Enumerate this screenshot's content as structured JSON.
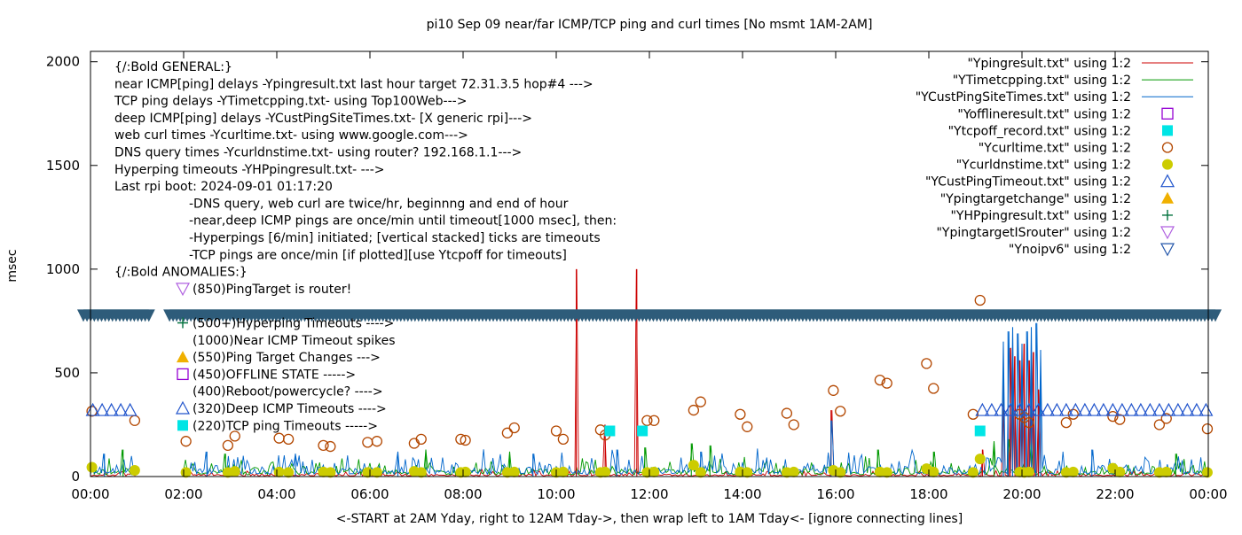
{
  "chart_data": {
    "type": "line",
    "title": "pi10 Sep 09  near/far ICMP/TCP ping and curl times [No msmt 1AM-2AM]",
    "xlabel": "<-START at 2AM Yday, right to 12AM Tday->, then wrap left to 1AM Tday<- [ignore connecting lines]",
    "ylabel": "msec",
    "xlim": [
      0,
      24
    ],
    "ylim": [
      0,
      2050
    ],
    "x_ticks": [
      "00:00",
      "02:00",
      "04:00",
      "06:00",
      "08:00",
      "10:00",
      "12:00",
      "14:00",
      "16:00",
      "18:00",
      "20:00",
      "22:00",
      "00:00"
    ],
    "y_ticks": [
      "0",
      "500",
      "1000",
      "1500",
      "2000"
    ],
    "grid": false,
    "legend_position": "top-right",
    "legend": [
      {
        "label": "\"Ypingresult.txt\" using 1:2",
        "symbol": "line",
        "color": "#cc0000"
      },
      {
        "label": "\"YTimetcpping.txt\" using 1:2",
        "symbol": "line",
        "color": "#009900"
      },
      {
        "label": "\"YCustPingSiteTimes.txt\" using 1:2",
        "symbol": "line",
        "color": "#0066cc"
      },
      {
        "label": "\"Yofflineresult.txt\" using 1:2",
        "symbol": "square-open",
        "color": "#9400d3"
      },
      {
        "label": "\"Ytcpoff_record.txt\" using 1:2",
        "symbol": "square-filled",
        "color": "#00e5e5"
      },
      {
        "label": "\"Ycurltime.txt\" using 1:2",
        "symbol": "circle-open",
        "color": "#b34700"
      },
      {
        "label": "\"Ycurldnstime.txt\" using 1:2",
        "symbol": "circle-filled",
        "color": "#cccc00"
      },
      {
        "label": "\"YCustPingTimeout.txt\" using 1:2",
        "symbol": "triangle-up-open",
        "color": "#2255cc"
      },
      {
        "label": "\"Ypingtargetchange\" using 1:2",
        "symbol": "triangle-up-filled",
        "color": "#f0b000"
      },
      {
        "label": "\"YHPpingresult.txt\" using 1:2",
        "symbol": "plus",
        "color": "#00703c"
      },
      {
        "label": "\"YpingtargetISrouter\" using 1:2",
        "symbol": "triangle-down-open",
        "color": "#b060e0"
      },
      {
        "label": "\"Ynoipv6\" using 1:2",
        "symbol": "triangle-down-open",
        "color": "#2255aa"
      }
    ],
    "info_lines": [
      "{/:Bold GENERAL:}",
      "near ICMP[ping] delays -Ypingresult.txt last hour target 72.31.3.5 hop#4 --->",
      "TCP ping delays -YTimetcpping.txt- using Top100Web--->",
      "deep ICMP[ping] delays -YCustPingSiteTimes.txt- [X generic rpi]--->",
      "web curl times -Ycurltime.txt- using www.google.com--->",
      "DNS query times -Ycurldnstime.txt- using router? 192.168.1.1--->",
      "Hyperping timeouts -YHPpingresult.txt- --->",
      "Last rpi boot: 2024-09-01 01:17:20"
    ],
    "note_lines": [
      "-DNS query, web curl are twice/hr, beginnng and end of hour",
      "-near,deep ICMP pings are once/min until timeout[1000 msec], then:",
      "  -Hyperpings [6/min] initiated; [vertical stacked] ticks are timeouts",
      "-TCP pings are once/min [if plotted][use Ytcpoff for timeouts]"
    ],
    "anomalies_title": "{/:Bold ANOMALIES:}",
    "anomalies": [
      {
        "text": "(850)PingTarget is router!",
        "symbol": "triangle-down-open",
        "color": "#b060e0"
      },
      {
        "text": "(500+)Hyperping Timeouts ---->",
        "symbol": "plus",
        "color": "#00703c"
      },
      {
        "text": "(1000)Near ICMP Timeout spikes",
        "symbol": "none",
        "color": "#000000"
      },
      {
        "text": "(550)Ping Target Changes --->",
        "symbol": "triangle-up-filled",
        "color": "#f0b000"
      },
      {
        "text": "(450)OFFLINE STATE ----->",
        "symbol": "square-open",
        "color": "#9400d3"
      },
      {
        "text": "(400)Reboot/powercycle? ---->",
        "symbol": "none",
        "color": "#000000"
      },
      {
        "text": "(320)Deep ICMP Timeouts ---->",
        "symbol": "triangle-up-open",
        "color": "#2255cc"
      },
      {
        "text": "(220)TCP ping Timeouts ----->",
        "symbol": "square-filled",
        "color": "#00e5e5"
      }
    ],
    "series": [
      {
        "name": "Ynoipv6",
        "color": "#2e5c7a",
        "marker": "triangle-down-open",
        "y_level": 780,
        "segments": [
          [
            0.0,
            1.1
          ],
          [
            1.85,
            24.0
          ]
        ]
      },
      {
        "name": "Ypingresult.txt",
        "color": "#cc0000",
        "base": 12,
        "spikes": [
          [
            10.43,
            1000
          ],
          [
            11.05,
            250
          ],
          [
            11.73,
            1000
          ],
          [
            15.9,
            320
          ],
          [
            19.15,
            130
          ],
          [
            19.6,
            440
          ],
          [
            19.75,
            620
          ],
          [
            19.85,
            580
          ],
          [
            19.95,
            560
          ],
          [
            20.05,
            640
          ],
          [
            20.15,
            560
          ],
          [
            20.25,
            600
          ],
          [
            20.35,
            420
          ]
        ]
      },
      {
        "name": "YTimetcpping.txt",
        "color": "#009900",
        "base": 35,
        "spikes": [
          [
            0.7,
            130
          ],
          [
            2.9,
            110
          ],
          [
            7.2,
            130
          ],
          [
            9.0,
            120
          ],
          [
            11.9,
            140
          ],
          [
            12.9,
            160
          ],
          [
            13.3,
            150
          ],
          [
            16.9,
            130
          ],
          [
            18.1,
            120
          ],
          [
            19.4,
            170
          ],
          [
            19.7,
            180
          ],
          [
            20.2,
            170
          ],
          [
            23.3,
            110
          ]
        ]
      },
      {
        "name": "YCustPingSiteTimes.txt",
        "color": "#0066cc",
        "base": 45,
        "spikes": [
          [
            0.3,
            110
          ],
          [
            2.5,
            120
          ],
          [
            4.4,
            110
          ],
          [
            6.6,
            120
          ],
          [
            9.5,
            110
          ],
          [
            11.3,
            130
          ],
          [
            13.1,
            120
          ],
          [
            15.9,
            270
          ],
          [
            19.6,
            650
          ],
          [
            19.7,
            700
          ],
          [
            19.8,
            720
          ],
          [
            19.9,
            690
          ],
          [
            20.0,
            640
          ],
          [
            20.1,
            700
          ],
          [
            20.2,
            720
          ],
          [
            20.3,
            740
          ],
          [
            20.4,
            610
          ],
          [
            21.5,
            130
          ]
        ]
      },
      {
        "name": "Ycurltime.txt",
        "color": "#b34700",
        "points": [
          [
            0.03,
            315
          ],
          [
            0.95,
            270
          ],
          [
            2.05,
            170
          ],
          [
            2.95,
            150
          ],
          [
            3.1,
            195
          ],
          [
            4.05,
            185
          ],
          [
            4.25,
            180
          ],
          [
            5.0,
            150
          ],
          [
            5.15,
            145
          ],
          [
            5.95,
            165
          ],
          [
            6.15,
            170
          ],
          [
            6.95,
            160
          ],
          [
            7.1,
            180
          ],
          [
            7.95,
            180
          ],
          [
            8.05,
            175
          ],
          [
            8.95,
            210
          ],
          [
            9.1,
            235
          ],
          [
            10.0,
            220
          ],
          [
            10.15,
            180
          ],
          [
            10.95,
            225
          ],
          [
            11.05,
            200
          ],
          [
            11.95,
            270
          ],
          [
            12.1,
            270
          ],
          [
            12.95,
            320
          ],
          [
            13.1,
            360
          ],
          [
            13.95,
            300
          ],
          [
            14.1,
            240
          ],
          [
            14.95,
            305
          ],
          [
            15.1,
            250
          ],
          [
            15.95,
            415
          ],
          [
            16.1,
            315
          ],
          [
            16.95,
            465
          ],
          [
            17.1,
            450
          ],
          [
            17.95,
            545
          ],
          [
            18.1,
            425
          ],
          [
            18.95,
            300
          ],
          [
            19.1,
            850
          ],
          [
            19.95,
            300
          ],
          [
            20.05,
            285
          ],
          [
            20.15,
            260
          ],
          [
            20.95,
            260
          ],
          [
            21.1,
            300
          ],
          [
            21.95,
            290
          ],
          [
            22.1,
            275
          ],
          [
            22.95,
            250
          ],
          [
            23.1,
            280
          ],
          [
            23.98,
            230
          ]
        ]
      },
      {
        "name": "Ycurldnstime.txt",
        "color": "#cccc00",
        "points": [
          [
            0.03,
            45
          ],
          [
            0.95,
            30
          ],
          [
            2.05,
            20
          ],
          [
            2.95,
            20
          ],
          [
            3.1,
            25
          ],
          [
            4.05,
            22
          ],
          [
            4.25,
            20
          ],
          [
            5.0,
            22
          ],
          [
            5.15,
            20
          ],
          [
            5.95,
            20
          ],
          [
            6.15,
            20
          ],
          [
            6.95,
            25
          ],
          [
            7.1,
            20
          ],
          [
            7.95,
            20
          ],
          [
            8.05,
            22
          ],
          [
            8.95,
            20
          ],
          [
            9.1,
            22
          ],
          [
            10.0,
            20
          ],
          [
            10.15,
            22
          ],
          [
            10.95,
            20
          ],
          [
            11.05,
            22
          ],
          [
            11.95,
            20
          ],
          [
            12.1,
            22
          ],
          [
            12.95,
            55
          ],
          [
            13.1,
            20
          ],
          [
            13.95,
            22
          ],
          [
            14.1,
            20
          ],
          [
            14.95,
            20
          ],
          [
            15.1,
            22
          ],
          [
            15.95,
            30
          ],
          [
            16.1,
            20
          ],
          [
            16.95,
            22
          ],
          [
            17.1,
            20
          ],
          [
            17.95,
            38
          ],
          [
            18.1,
            22
          ],
          [
            18.95,
            20
          ],
          [
            19.1,
            85
          ],
          [
            19.95,
            22
          ],
          [
            20.05,
            20
          ],
          [
            20.15,
            22
          ],
          [
            20.95,
            20
          ],
          [
            21.1,
            22
          ],
          [
            21.95,
            40
          ],
          [
            22.1,
            22
          ],
          [
            22.95,
            20
          ],
          [
            23.1,
            22
          ],
          [
            23.98,
            20
          ]
        ]
      },
      {
        "name": "YCustPingTimeout.txt",
        "color": "#2255cc",
        "points": [
          [
            0.05,
            320
          ],
          [
            0.25,
            320
          ],
          [
            0.45,
            320
          ],
          [
            0.65,
            320
          ],
          [
            0.85,
            320
          ],
          [
            19.15,
            320
          ],
          [
            19.35,
            320
          ],
          [
            19.55,
            320
          ],
          [
            19.75,
            320
          ],
          [
            19.95,
            320
          ],
          [
            20.15,
            320
          ],
          [
            20.35,
            320
          ],
          [
            20.55,
            320
          ],
          [
            20.75,
            320
          ],
          [
            20.95,
            320
          ],
          [
            21.15,
            320
          ],
          [
            21.35,
            320
          ],
          [
            21.55,
            320
          ],
          [
            21.75,
            320
          ],
          [
            21.95,
            320
          ],
          [
            22.15,
            320
          ],
          [
            22.35,
            320
          ],
          [
            22.55,
            320
          ],
          [
            22.75,
            320
          ],
          [
            22.95,
            320
          ],
          [
            23.15,
            320
          ],
          [
            23.35,
            320
          ],
          [
            23.55,
            320
          ],
          [
            23.75,
            320
          ],
          [
            23.95,
            320
          ]
        ]
      },
      {
        "name": "Ytcpoff_record.txt",
        "color": "#00e5e5",
        "points": [
          [
            11.15,
            220
          ],
          [
            11.85,
            220
          ],
          [
            19.1,
            220
          ]
        ]
      }
    ]
  }
}
